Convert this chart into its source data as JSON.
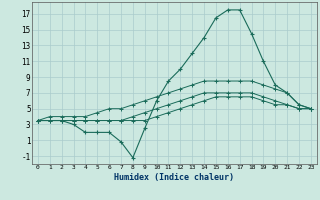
{
  "xlabel": "Humidex (Indice chaleur)",
  "background_color": "#cce8e0",
  "grid_color": "#aacccc",
  "line_color": "#1a6b5a",
  "xlim": [
    -0.5,
    23.5
  ],
  "ylim": [
    -2,
    18.5
  ],
  "xticks": [
    0,
    1,
    2,
    3,
    4,
    5,
    6,
    7,
    8,
    9,
    10,
    11,
    12,
    13,
    14,
    15,
    16,
    17,
    18,
    19,
    20,
    21,
    22,
    23
  ],
  "yticks": [
    -1,
    1,
    3,
    5,
    7,
    9,
    11,
    13,
    15,
    17
  ],
  "line1_x": [
    0,
    1,
    2,
    3,
    4,
    5,
    6,
    7,
    8,
    9,
    10,
    11,
    12,
    13,
    14,
    15,
    16,
    17,
    18,
    19,
    20,
    21,
    22,
    23
  ],
  "line1_y": [
    3.5,
    4.0,
    4.0,
    4.0,
    4.0,
    4.5,
    5.0,
    5.0,
    5.5,
    6.0,
    6.5,
    7.0,
    7.5,
    8.0,
    8.5,
    8.5,
    8.5,
    8.5,
    8.5,
    8.0,
    7.5,
    7.0,
    5.5,
    5.0
  ],
  "line2_x": [
    0,
    1,
    2,
    3,
    4,
    5,
    6,
    7,
    8,
    9,
    10,
    11,
    12,
    13,
    14,
    15,
    16,
    17,
    18,
    19,
    20,
    21,
    22,
    23
  ],
  "line2_y": [
    3.5,
    3.5,
    3.5,
    3.5,
    3.5,
    3.5,
    3.5,
    3.5,
    4.0,
    4.5,
    5.0,
    5.5,
    6.0,
    6.5,
    7.0,
    7.0,
    7.0,
    7.0,
    7.0,
    6.5,
    6.0,
    5.5,
    5.0,
    5.0
  ],
  "line3_x": [
    0,
    1,
    2,
    3,
    4,
    5,
    6,
    7,
    8,
    9,
    10,
    11,
    12,
    13,
    14,
    15,
    16,
    17,
    18,
    19,
    20,
    21,
    22,
    23
  ],
  "line3_y": [
    3.5,
    3.5,
    3.5,
    3.5,
    3.5,
    3.5,
    3.5,
    3.5,
    3.5,
    3.5,
    4.0,
    4.5,
    5.0,
    5.5,
    6.0,
    6.5,
    6.5,
    6.5,
    6.5,
    6.0,
    5.5,
    5.5,
    5.0,
    5.0
  ],
  "line4_x": [
    0,
    2,
    3,
    4,
    5,
    6,
    7,
    8,
    9,
    10,
    11,
    12,
    13,
    14,
    15,
    16,
    17,
    18,
    19,
    20,
    21,
    22,
    23
  ],
  "line4_y": [
    3.5,
    3.5,
    3.0,
    2.0,
    2.0,
    2.0,
    0.8,
    -1.2,
    2.5,
    6.0,
    8.5,
    10.0,
    12.0,
    14.0,
    16.5,
    17.5,
    17.5,
    14.5,
    11.0,
    8.0,
    7.0,
    5.5,
    5.0
  ]
}
